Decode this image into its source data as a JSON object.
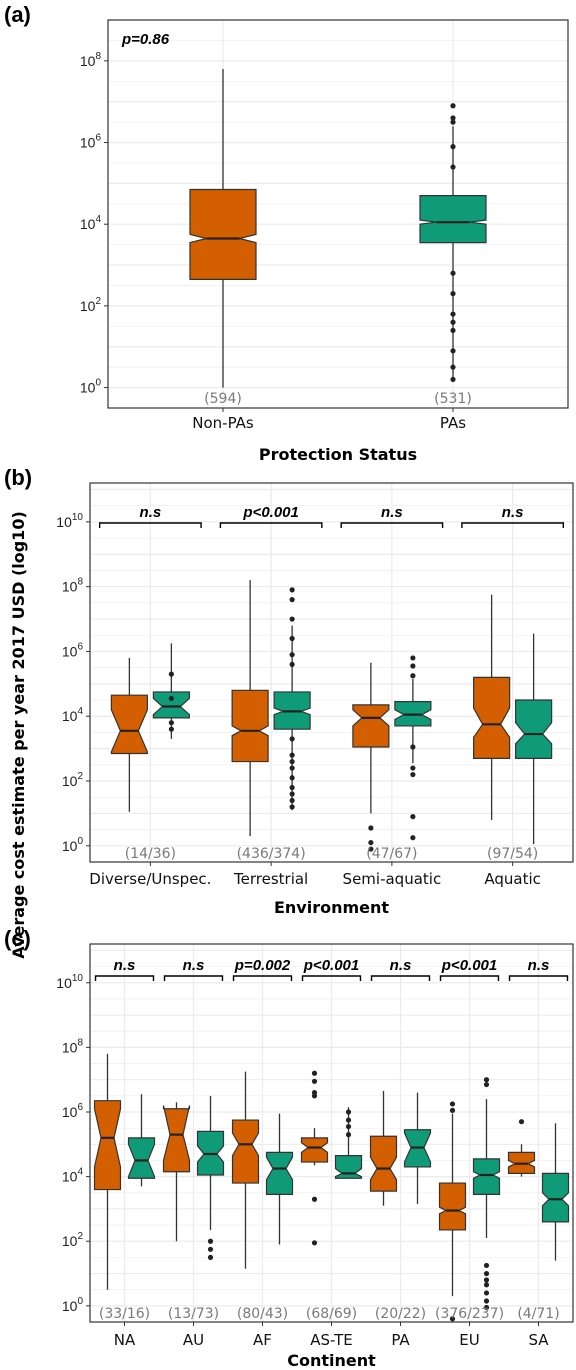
{
  "colors": {
    "non_pa": "#d35f00",
    "pa": "#0f9b78",
    "grid": "#ebebeb"
  },
  "y_axis_title": "Average cost estimate per year 2017 USD (log10)",
  "chart_data": [
    {
      "panel": "(a)",
      "type": "boxplot",
      "yscale": "log10",
      "ylim_log10": [
        -0.5,
        9.0
      ],
      "xlabel": "Protection Status",
      "annotation": "p=0.86",
      "categories": [
        "Non-PAs",
        "PAs"
      ],
      "counts": [
        "(594)",
        "(531)"
      ],
      "boxes": [
        {
          "category": "Non-PAs",
          "series": "non_pa",
          "log10": {
            "min": 0.0,
            "q1": 2.65,
            "median": 3.65,
            "q3": 4.85,
            "max": 7.8,
            "notch_lo": 3.55,
            "notch_hi": 3.75
          },
          "outliers": []
        },
        {
          "category": "PAs",
          "series": "pa",
          "log10": {
            "min": 0.15,
            "q1": 3.55,
            "median": 4.05,
            "q3": 4.7,
            "max": 6.4,
            "notch_lo": 4.0,
            "notch_hi": 4.1
          },
          "outliers": [
            6.9,
            6.6,
            6.5,
            5.9,
            5.4,
            2.8,
            2.3,
            1.8,
            1.6,
            1.4,
            0.9,
            0.5,
            0.2
          ]
        }
      ]
    },
    {
      "panel": "(b)",
      "type": "boxplot",
      "yscale": "log10",
      "ylim_log10": [
        -0.5,
        11.2
      ],
      "xlabel": "Environment",
      "categories": [
        "Diverse/Unspec.",
        "Terrestrial",
        "Semi-aquatic",
        "Aquatic"
      ],
      "counts": [
        "(14/36)",
        "(436/374)",
        "(47/67)",
        "(97/54)"
      ],
      "annotations": [
        "n.s",
        "p<0.001",
        "n.s",
        "n.s"
      ],
      "boxes": [
        {
          "category": "Diverse/Unspec.",
          "series": "non_pa",
          "log10": {
            "min": 1.05,
            "q1": 2.85,
            "median": 3.55,
            "q3": 4.65,
            "max": 5.8,
            "notch_lo": 2.9,
            "notch_hi": 4.2
          },
          "outliers": []
        },
        {
          "category": "Diverse/Unspec.",
          "series": "pa",
          "log10": {
            "min": 3.3,
            "q1": 3.95,
            "median": 4.3,
            "q3": 4.75,
            "max": 6.25,
            "notch_lo": 4.05,
            "notch_hi": 4.55
          },
          "outliers": [
            5.3,
            4.55,
            3.8,
            3.6
          ]
        },
        {
          "category": "Terrestrial",
          "series": "non_pa",
          "log10": {
            "min": 0.3,
            "q1": 2.6,
            "median": 3.55,
            "q3": 4.8,
            "max": 8.2,
            "notch_lo": 3.4,
            "notch_hi": 3.7
          },
          "outliers": []
        },
        {
          "category": "Terrestrial",
          "series": "pa",
          "log10": {
            "min": 1.1,
            "q1": 3.6,
            "median": 4.15,
            "q3": 4.75,
            "max": 6.8,
            "notch_lo": 4.05,
            "notch_hi": 4.25
          },
          "outliers": [
            7.9,
            7.6,
            7.0,
            6.4,
            5.9,
            5.6,
            3.3,
            2.8,
            2.6,
            2.4,
            2.1,
            1.8,
            1.6,
            1.4,
            1.2
          ]
        },
        {
          "category": "Semi-aquatic",
          "series": "non_pa",
          "log10": {
            "min": 1.0,
            "q1": 3.05,
            "median": 3.95,
            "q3": 4.35,
            "max": 5.65,
            "notch_lo": 3.7,
            "notch_hi": 4.2
          },
          "outliers": [
            0.55,
            0.1,
            -0.1
          ]
        },
        {
          "category": "Semi-aquatic",
          "series": "pa",
          "log10": {
            "min": 2.55,
            "q1": 3.7,
            "median": 4.05,
            "q3": 4.45,
            "max": 5.15,
            "notch_lo": 3.9,
            "notch_hi": 4.2
          },
          "outliers": [
            5.8,
            5.55,
            5.25,
            3.05,
            2.4,
            2.2,
            0.9,
            0.25
          ]
        },
        {
          "category": "Aquatic",
          "series": "non_pa",
          "log10": {
            "min": 0.8,
            "q1": 2.7,
            "median": 3.75,
            "q3": 5.2,
            "max": 7.75,
            "notch_lo": 3.35,
            "notch_hi": 4.25
          },
          "outliers": []
        },
        {
          "category": "Aquatic",
          "series": "pa",
          "log10": {
            "min": 0.05,
            "q1": 2.7,
            "median": 3.45,
            "q3": 4.5,
            "max": 6.55,
            "notch_lo": 3.15,
            "notch_hi": 3.8
          },
          "outliers": []
        }
      ]
    },
    {
      "panel": "(c)",
      "type": "boxplot",
      "yscale": "log10",
      "ylim_log10": [
        -0.5,
        11.2
      ],
      "xlabel": "Continent",
      "categories": [
        "NA",
        "AU",
        "AF",
        "AS-TE",
        "PA",
        "EU",
        "SA"
      ],
      "counts": [
        "(33/16)",
        "(13/73)",
        "(80/43)",
        "(68/69)",
        "(20/22)",
        "(376/237)",
        "(4/71)"
      ],
      "annotations": [
        "n.s",
        "n.s",
        "p=0.002",
        "p<0.001",
        "n.s",
        "p<0.001",
        "n.s"
      ],
      "boxes": [
        {
          "category": "NA",
          "series": "non_pa",
          "log10": {
            "min": 0.5,
            "q1": 3.6,
            "median": 5.2,
            "q3": 6.35,
            "max": 7.8,
            "notch_lo": 4.3,
            "notch_hi": 6.1
          },
          "outliers": []
        },
        {
          "category": "NA",
          "series": "pa",
          "log10": {
            "min": 3.7,
            "q1": 3.95,
            "median": 4.5,
            "q3": 5.2,
            "max": 6.55,
            "notch_lo": 4.0,
            "notch_hi": 5.0
          },
          "outliers": []
        },
        {
          "category": "AU",
          "series": "non_pa",
          "log10": {
            "min": 2.0,
            "q1": 4.15,
            "median": 5.3,
            "q3": 6.1,
            "max": 6.3,
            "notch_lo": 4.5,
            "notch_hi": 6.2
          },
          "outliers": []
        },
        {
          "category": "AU",
          "series": "pa",
          "log10": {
            "min": 2.35,
            "q1": 4.05,
            "median": 4.7,
            "q3": 5.4,
            "max": 6.5,
            "notch_lo": 4.45,
            "notch_hi": 4.95
          },
          "outliers": [
            2.0,
            1.75,
            1.5
          ]
        },
        {
          "category": "AF",
          "series": "non_pa",
          "log10": {
            "min": 1.15,
            "q1": 3.8,
            "median": 5.0,
            "q3": 5.75,
            "max": 7.25,
            "notch_lo": 4.65,
            "notch_hi": 5.35
          },
          "outliers": []
        },
        {
          "category": "AF",
          "series": "pa",
          "log10": {
            "min": 1.9,
            "q1": 3.45,
            "median": 4.25,
            "q3": 4.75,
            "max": 5.95,
            "notch_lo": 3.9,
            "notch_hi": 4.6
          },
          "outliers": []
        },
        {
          "category": "AS-TE",
          "series": "non_pa",
          "log10": {
            "min": 4.35,
            "q1": 4.45,
            "median": 4.9,
            "q3": 5.2,
            "max": 5.5,
            "notch_lo": 4.75,
            "notch_hi": 5.05
          },
          "outliers": [
            7.2,
            6.95,
            6.6,
            6.5,
            3.3,
            1.95
          ]
        },
        {
          "category": "AS-TE",
          "series": "pa",
          "log10": {
            "min": 3.95,
            "q1": 3.95,
            "median": 4.1,
            "q3": 4.65,
            "max": 6.15,
            "notch_lo": 4.0,
            "notch_hi": 4.25
          },
          "outliers": [
            6.0,
            5.75,
            5.55,
            5.3
          ]
        },
        {
          "category": "PA",
          "series": "non_pa",
          "log10": {
            "min": 3.1,
            "q1": 3.55,
            "median": 4.25,
            "q3": 5.25,
            "max": 6.65,
            "notch_lo": 3.9,
            "notch_hi": 4.6
          },
          "outliers": []
        },
        {
          "category": "PA",
          "series": "pa",
          "log10": {
            "min": 3.15,
            "q1": 4.3,
            "median": 4.9,
            "q3": 5.45,
            "max": 6.6,
            "notch_lo": 4.45,
            "notch_hi": 5.35
          },
          "outliers": []
        },
        {
          "category": "EU",
          "series": "non_pa",
          "log10": {
            "min": 0.3,
            "q1": 2.35,
            "median": 2.95,
            "q3": 3.8,
            "max": 5.95,
            "notch_lo": 2.85,
            "notch_hi": 3.05
          },
          "outliers": [
            6.25,
            6.05,
            -0.4
          ]
        },
        {
          "category": "EU",
          "series": "pa",
          "log10": {
            "min": 2.1,
            "q1": 3.45,
            "median": 4.05,
            "q3": 4.55,
            "max": 6.4,
            "notch_lo": 3.95,
            "notch_hi": 4.15
          },
          "outliers": [
            7.0,
            6.85,
            1.25,
            1.0,
            0.8,
            0.65,
            0.4,
            0.15,
            -0.05
          ]
        },
        {
          "category": "SA",
          "series": "non_pa",
          "log10": {
            "min": 4.0,
            "q1": 4.1,
            "median": 4.4,
            "q3": 4.75,
            "max": 5.0,
            "notch_lo": 4.3,
            "notch_hi": 4.5
          },
          "outliers": [
            5.7
          ]
        },
        {
          "category": "SA",
          "series": "pa",
          "log10": {
            "min": 1.4,
            "q1": 2.6,
            "median": 3.3,
            "q3": 4.1,
            "max": 5.65,
            "notch_lo": 3.1,
            "notch_hi": 3.5
          },
          "outliers": []
        }
      ]
    }
  ]
}
